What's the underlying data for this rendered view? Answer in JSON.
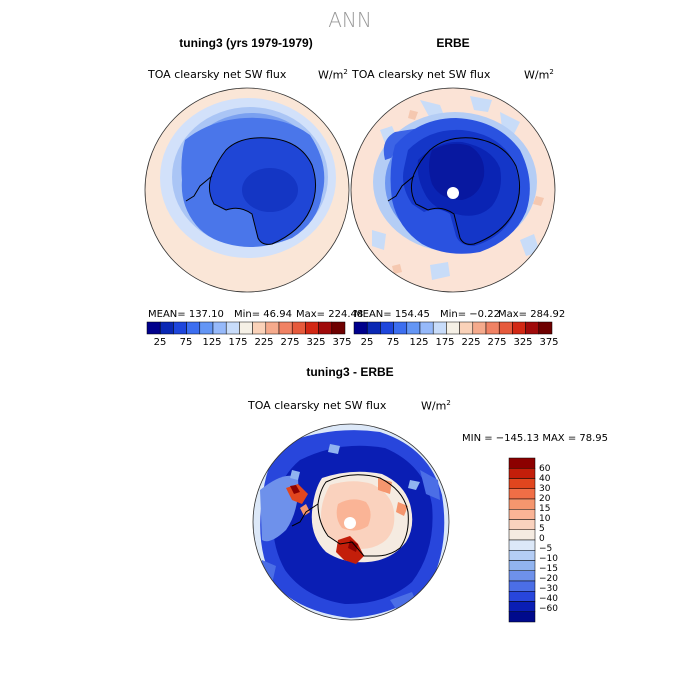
{
  "figure": {
    "suptitle": "ANN",
    "panels": [
      {
        "title": "tuning3 (yrs 1979-1979)",
        "field": "TOA clearsky net SW flux",
        "units": "W/m",
        "units_exp": "2",
        "mean_text": "MEAN= 137.10",
        "min_text": "Min=  46.94",
        "max_text": "Max= 224.48"
      },
      {
        "title": "ERBE",
        "field": "TOA clearsky net SW flux",
        "units": "W/m",
        "units_exp": "2",
        "mean_text": "MEAN= 154.45",
        "min_text": "Min=  −0.22",
        "max_text": "Max= 284.92"
      },
      {
        "title": "tuning3 - ERBE",
        "field": "TOA clearsky net SW flux",
        "units": "W/m",
        "units_exp": "2",
        "minmax_text": "MIN = −145.13  MAX =  78.95"
      }
    ],
    "colorbar_main": {
      "ticks": [
        "25",
        "75",
        "125",
        "175",
        "225",
        "275",
        "325",
        "375"
      ],
      "colors": [
        "#00008c",
        "#0a28b4",
        "#1e46dc",
        "#3c6ef0",
        "#6496f5",
        "#96b9fa",
        "#c8dcfa",
        "#f5f0e6",
        "#fad2b9",
        "#f5aa8c",
        "#f08264",
        "#e65a3c",
        "#d22814",
        "#a00a0a",
        "#6e0000"
      ]
    },
    "colorbar_diff": {
      "labels": [
        "60",
        "40",
        "30",
        "20",
        "15",
        "10",
        "5",
        "0",
        "−5",
        "−10",
        "−15",
        "−20",
        "−30",
        "−40",
        "−60"
      ],
      "colors": [
        "#8c0000",
        "#c31e0a",
        "#e1461e",
        "#f06e46",
        "#f5966e",
        "#fab496",
        "#fad2be",
        "#f5ebe1",
        "#dce8f8",
        "#b4cdf5",
        "#91b4f0",
        "#6e91eb",
        "#4b6ee6",
        "#2846dc",
        "#0a1eb4",
        "#000a8c"
      ]
    }
  },
  "chart_data": [
    {
      "type": "heatmap",
      "title": "tuning3 (yrs 1979-1979)",
      "subtitle": "TOA clearsky net SW flux",
      "units": "W/m2",
      "stats": {
        "mean": 137.1,
        "min": 46.94,
        "max": 224.48
      },
      "colorbar_ticks": [
        25,
        75,
        125,
        175,
        225,
        275,
        325,
        375
      ]
    },
    {
      "type": "heatmap",
      "title": "ERBE",
      "subtitle": "TOA clearsky net SW flux",
      "units": "W/m2",
      "stats": {
        "mean": 154.45,
        "min": -0.22,
        "max": 284.92
      },
      "colorbar_ticks": [
        25,
        75,
        125,
        175,
        225,
        275,
        325,
        375
      ]
    },
    {
      "type": "heatmap",
      "title": "tuning3 - ERBE",
      "subtitle": "TOA clearsky net SW flux",
      "units": "W/m2",
      "stats": {
        "min": -145.13,
        "max": 78.95
      },
      "colorbar_levels": [
        60,
        40,
        30,
        20,
        15,
        10,
        5,
        0,
        -5,
        -10,
        -15,
        -20,
        -30,
        -40,
        -60
      ]
    }
  ]
}
